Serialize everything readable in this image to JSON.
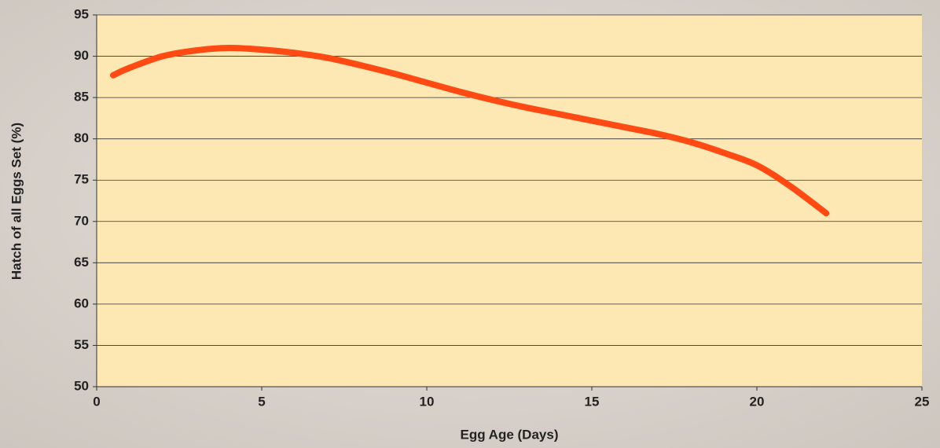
{
  "chart_data": {
    "type": "line",
    "x_label": "Egg Age (Days)",
    "y_label": "Hatch of all Eggs Set (%)",
    "x": [
      0.5,
      1,
      2,
      3,
      4,
      5,
      6,
      7,
      8,
      9,
      10,
      11,
      12,
      13,
      14,
      15,
      16,
      17,
      18,
      19,
      20,
      21,
      22.1
    ],
    "series": [
      {
        "color": "#ff4a14",
        "values": [
          87.7,
          88.6,
          90.0,
          90.7,
          91.0,
          90.8,
          90.4,
          89.8,
          88.9,
          87.9,
          86.8,
          85.7,
          84.7,
          83.8,
          83.0,
          82.2,
          81.4,
          80.6,
          79.6,
          78.3,
          76.8,
          74.3,
          71.0
        ]
      }
    ],
    "xlim": [
      0,
      25
    ],
    "xticks": [
      0,
      5,
      10,
      15,
      20,
      25
    ],
    "ylim": [
      50,
      95
    ],
    "yticks": [
      50,
      55,
      60,
      65,
      70,
      75,
      80,
      85,
      90,
      95
    ],
    "grid": true
  }
}
